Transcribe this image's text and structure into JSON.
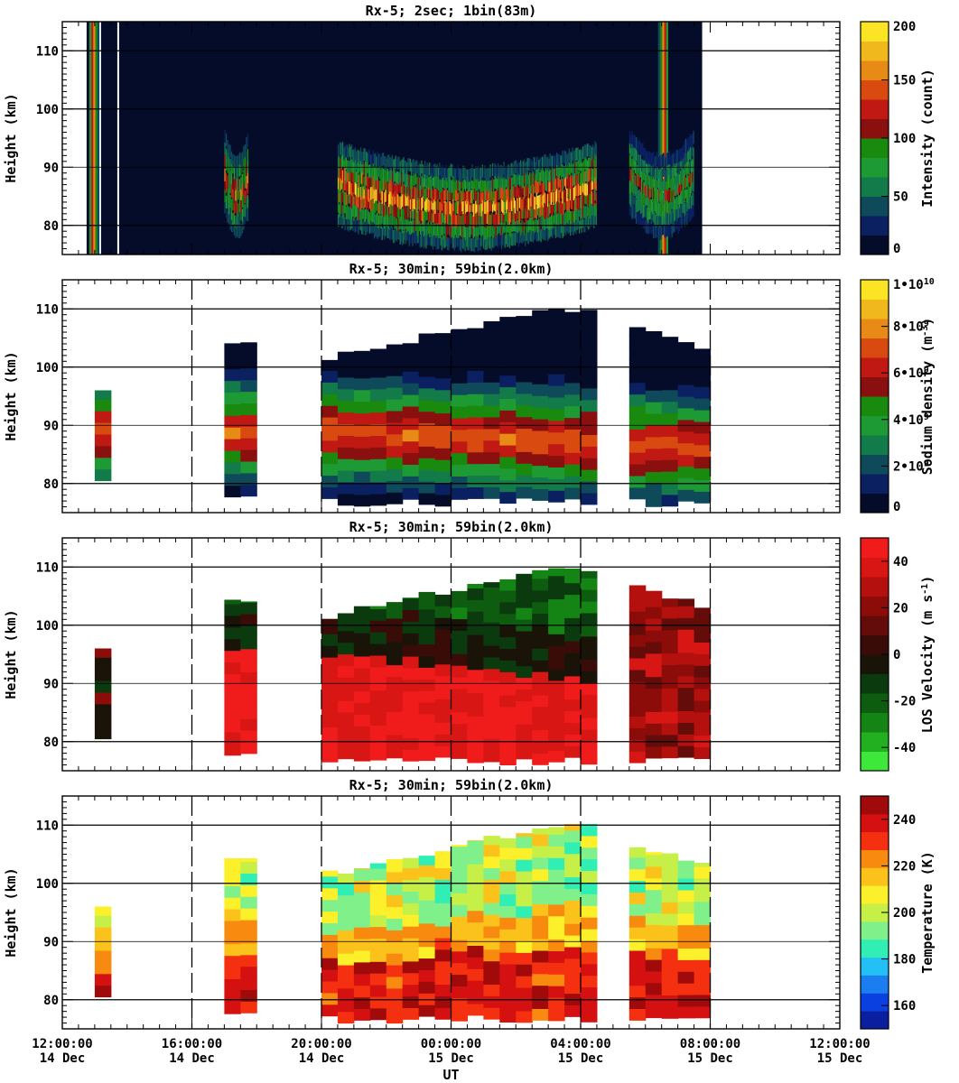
{
  "chart_data": [
    {
      "type": "heatmap",
      "title": "Rx-5;  2sec; 1bin(83m)",
      "ylabel": "Height (km)",
      "ylim": [
        75,
        115
      ],
      "yticks": [
        "80",
        "90",
        "100",
        "110"
      ],
      "colorbar": {
        "label": "Intensity (count)",
        "ticks": [
          "0",
          "50",
          "100",
          "150",
          "200"
        ],
        "range": [
          0,
          200
        ],
        "colors": [
          "#040c2a",
          "#0a2060",
          "#0f4a5a",
          "#137a4a",
          "#1e9a34",
          "#1a8a0f",
          "#8a0f0f",
          "#c01812",
          "#d84a10",
          "#e88a16",
          "#f0b81c",
          "#fbe424"
        ]
      },
      "observation_window": [
        "12:45",
        "07:45"
      ],
      "layer_km": [
        78,
        97
      ]
    },
    {
      "type": "heatmap",
      "title": "Rx-5; 30min; 59bin(2.0km)",
      "ylabel": "Height (km)",
      "ylim": [
        75,
        115
      ],
      "yticks": [
        "80",
        "90",
        "100",
        "110"
      ],
      "colorbar": {
        "label": "Sodium density (m^-3)",
        "ticks": [
          "0",
          "2•10^9",
          "4•10^9",
          "6•10^9",
          "8•10^9",
          "1•10^10"
        ],
        "range": [
          0,
          10000000000
        ],
        "colors": [
          "#040c2a",
          "#0a2060",
          "#0f4a5a",
          "#137a4a",
          "#1e9a34",
          "#1a8a0f",
          "#8a0f0f",
          "#c01812",
          "#d84a10",
          "#e88a16",
          "#f0b81c",
          "#fbe424"
        ]
      },
      "segments": [
        [
          "13:00",
          "13:30"
        ],
        [
          "17:00",
          "18:00"
        ],
        [
          "20:00",
          "04:30"
        ],
        [
          "05:30",
          "08:00"
        ]
      ]
    },
    {
      "type": "heatmap",
      "title": "Rx-5; 30min; 59bin(2.0km)",
      "ylabel": "Height (km)",
      "ylim": [
        75,
        115
      ],
      "yticks": [
        "80",
        "90",
        "100",
        "110"
      ],
      "colorbar": {
        "label": "LOS Velocity (m s^-1)",
        "ticks": [
          "-40",
          "-20",
          "0",
          "20",
          "40"
        ],
        "range": [
          -50,
          50
        ],
        "colors": [
          "#3ee83a",
          "#22b020",
          "#148414",
          "#0e5c10",
          "#0b3a0e",
          "#1a1408",
          "#3a0c08",
          "#640c0a",
          "#8c0c0a",
          "#b4100e",
          "#d81614",
          "#f01c1c"
        ]
      },
      "segments": [
        [
          "13:00",
          "13:30"
        ],
        [
          "17:00",
          "18:00"
        ],
        [
          "20:00",
          "04:30"
        ],
        [
          "05:30",
          "08:00"
        ]
      ]
    },
    {
      "type": "heatmap",
      "title": "Rx-5; 30min; 59bin(2.0km)",
      "ylabel": "Height (km)",
      "ylim": [
        75,
        115
      ],
      "yticks": [
        "80",
        "90",
        "100",
        "110"
      ],
      "xlabel": "UT",
      "xticks": [
        {
          "time": "12:00:00",
          "date": "14 Dec"
        },
        {
          "time": "16:00:00",
          "date": "14 Dec"
        },
        {
          "time": "20:00:00",
          "date": "14 Dec"
        },
        {
          "time": "00:00:00",
          "date": "15 Dec"
        },
        {
          "time": "04:00:00",
          "date": "15 Dec"
        },
        {
          "time": "08:00:00",
          "date": "15 Dec"
        },
        {
          "time": "12:00:00",
          "date": "15 Dec"
        }
      ],
      "colorbar": {
        "label": "Temperature (K)",
        "ticks": [
          "160",
          "180",
          "200",
          "220",
          "240"
        ],
        "range": [
          150,
          250
        ],
        "colors": [
          "#0a1ea0",
          "#0a40e0",
          "#1a7ef0",
          "#22c0f4",
          "#30eeb4",
          "#80f08a",
          "#c6f048",
          "#fbf02a",
          "#fcc21c",
          "#f88a10",
          "#f43010",
          "#d41010",
          "#a00a0a"
        ]
      },
      "segments": [
        [
          "13:00",
          "13:30"
        ],
        [
          "17:00",
          "18:00"
        ],
        [
          "20:00",
          "04:30"
        ],
        [
          "05:30",
          "08:00"
        ]
      ]
    }
  ]
}
